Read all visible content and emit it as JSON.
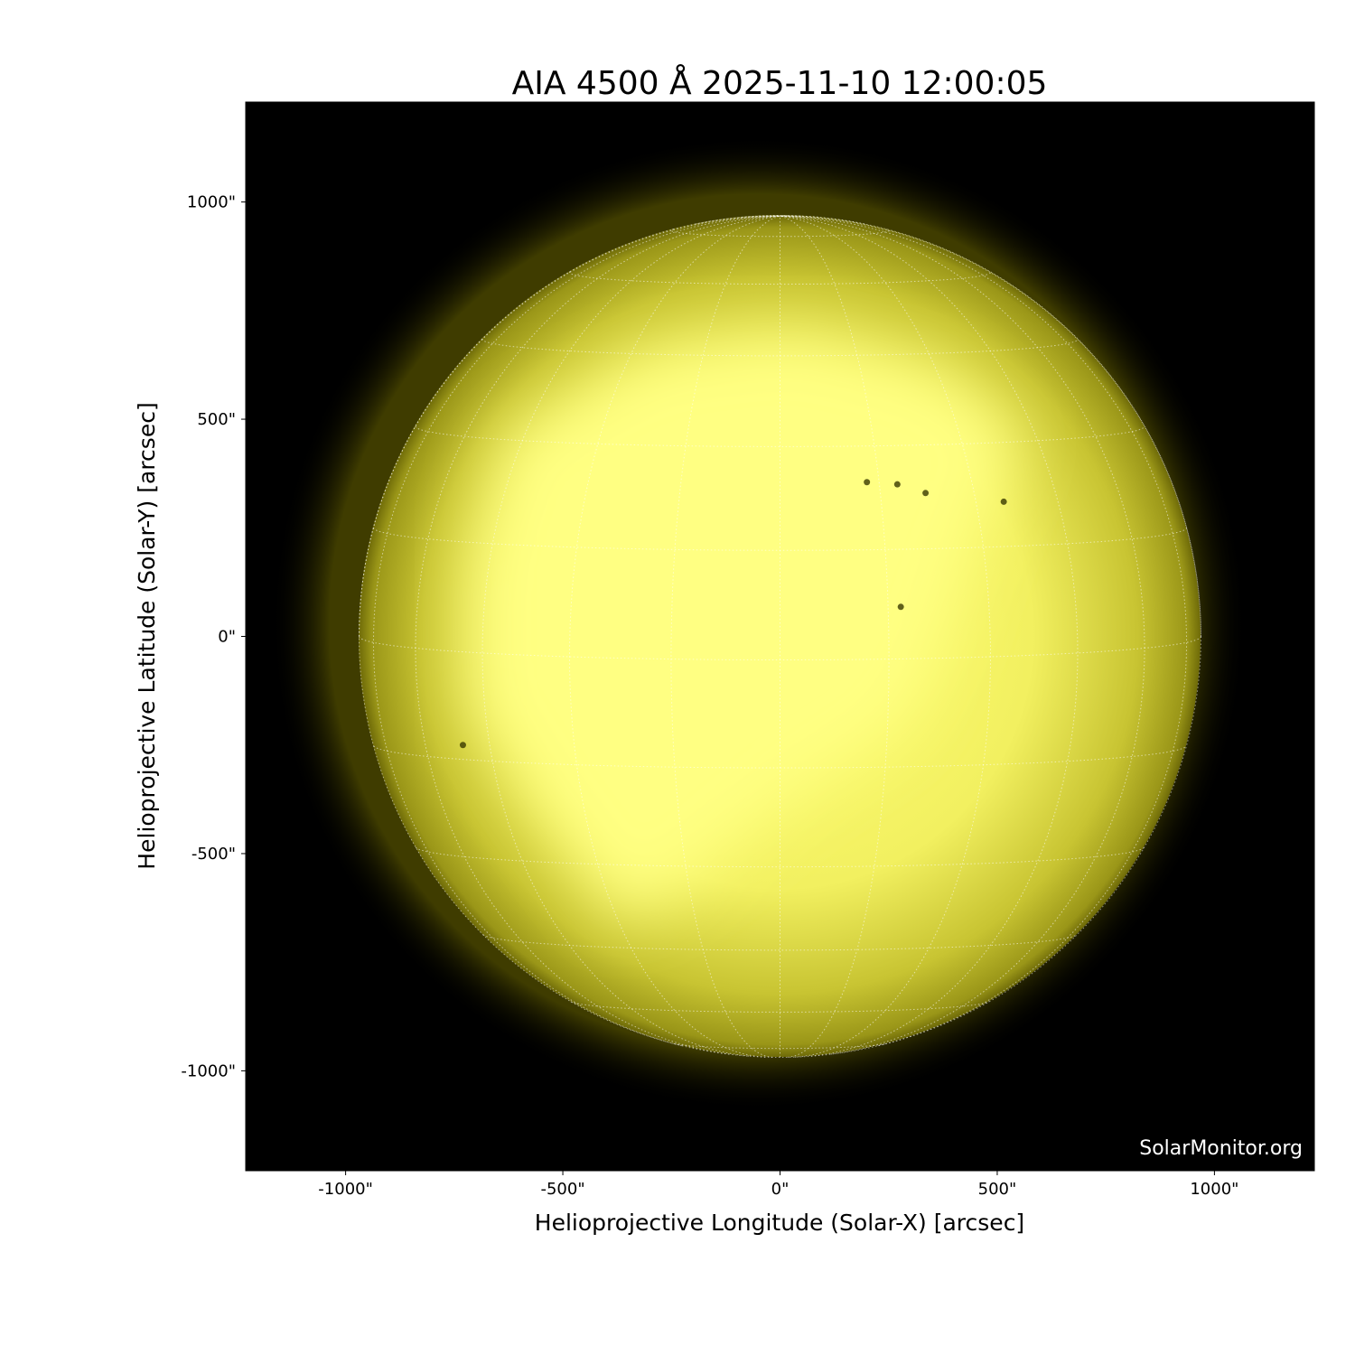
{
  "chart_data": {
    "type": "image",
    "title": "AIA 4500 Å 2025-11-10 12:00:05",
    "title_parts": {
      "instrument": "AIA 4500",
      "unit": "Å",
      "timestamp": "2025-11-10 12:00:05"
    },
    "xlabel": "Helioprojective Longitude (Solar-X) [arcsec]",
    "ylabel": "Helioprojective Latitude (Solar-Y) [arcsec]",
    "xlim": [
      -1230,
      1230
    ],
    "ylim": [
      -1230,
      1230
    ],
    "xticks": [
      -1000,
      -500,
      0,
      500,
      1000
    ],
    "yticks": [
      -1000,
      -500,
      0,
      500,
      1000
    ],
    "xtick_labels": [
      "-1000\"",
      "-500\"",
      "0\"",
      "500\"",
      "1000\""
    ],
    "ytick_labels": [
      "-1000\"",
      "-500\"",
      "0\"",
      "500\"",
      "1000\""
    ],
    "solar_radius_arcsec": 969,
    "grid": "heliographic, dotted, 15° spacing",
    "colormap": "yellow (sdoaia4500)",
    "colors": {
      "background": "#000000",
      "disk_bright": "#ffff80",
      "disk_limb": "#8a8a10",
      "grid": "#ffffff"
    },
    "sunspots": [
      [
        200,
        355
      ],
      [
        270,
        350
      ],
      [
        335,
        330
      ],
      [
        515,
        310
      ],
      [
        278,
        68
      ],
      [
        -730,
        -250
      ]
    ],
    "watermark": "SolarMonitor.org"
  }
}
